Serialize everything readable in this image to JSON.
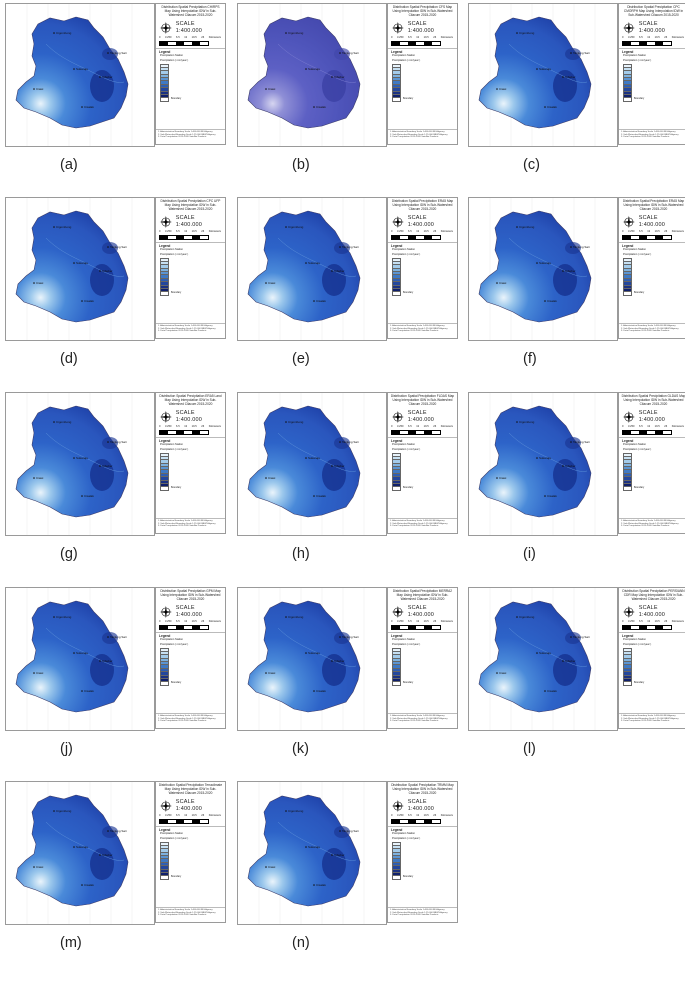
{
  "panel_labels": [
    "(a)",
    "(b)",
    "(c)",
    "(d)",
    "(e)",
    "(f)",
    "(g)",
    "(h)",
    "(i)",
    "(j)",
    "(k)",
    "(l)",
    "(m)",
    "(n)"
  ],
  "titles": [
    "Distribution Spatial Precipitation CHIRPS Map Using Interpolation IDW in Sub-Watershed Cilacum 2015-2020",
    "Distribution Spatial Precipitation CFS Map Using Interpolation IDW in Sub-Watershed Cilacum 2015-2020",
    "Distribution Spatial Precipitation CPC CMORPH Map Using Interpolation IDW in Sub-Watershed Cilacum 2015-2020",
    "Distribution Spatial Precipitation CPC UFP Map Using Interpolation IDW in Sub-Watershed Cilacum 2015-2020",
    "Distribution Spatial Precipitation ERA5 Map Using Interpolation IDW in Sub-Watershed Cilacum 2015-2020",
    "Distribution Spatial Precipitation ERA5 Map Using Interpolation IDW in Sub-Watershed Cilacum 2015-2020",
    "Distribution Spatial Precipitation ERA5 Land Map Using Interpolation IDW in Sub-Watershed Cilacum 2015-2020",
    "Distribution Spatial Precipitation FLDAS Map Using Interpolation IDW in Sub-Watershed Cilacum 2015-2020",
    "Distribution Spatial Precipitation GLDAS Map Using Interpolation IDW in Sub-Watershed Cilacum 2015-2020",
    "Distribution Spatial Precipitation GPM Map Using Interpolation IDW in Sub-Watershed Cilacum 2015-2020",
    "Distribution Spatial Precipitation MERRA2 Map Using Interpolation IDW in Sub-Watershed Cilacum 2015-2020",
    "Distribution Spatial Precipitation PERSIANN CDR Map Using Interpolation IDW in Sub-Watershed Cilacum 2015-2020",
    "Distribution Spatial Precipitation Terraclimate Map Using Interpolation IDW in Sub-Watershed Cilacum 2015-2020",
    "Distribution Spatial Precipitation TRMM Map Using Interpolation IDW in Sub-Watershed Cilacum 2015-2020"
  ],
  "scale_text": "SCALE  1:400.000",
  "scale_labels": [
    "0",
    "3.250",
    "6.5",
    "13",
    "19.5",
    "26"
  ],
  "scale_unit": "Kilometers",
  "legend_title": "Legend",
  "legend_station": "Precipitation Station",
  "legend_precip": "Precipitation ( mm/year )",
  "legend_colors": [
    "#e8f3fb",
    "#c6e0f3",
    "#a3cbea",
    "#7fb2df",
    "#5b94d2",
    "#3f79c4",
    "#2f5fb3",
    "#24479d",
    "#1b3283",
    "#10206b"
  ],
  "legend_boundary": "Boundary",
  "source_lines": [
    "1. Administrative Boundary Scale 1:400.000 BIG Agency",
    "2. Sub-Watershed Boundary Scale 1:25.000 BBWS Agency",
    "3. Data Precipitation 2015-2020 Satellite Products"
  ],
  "place_labels": {
    "tanjung_sari": "Tanjung Sari",
    "north": "Cigombong",
    "center": "Sukaraja",
    "south": "Cisalak",
    "west": "Ciawi",
    "east": "Cibeber"
  }
}
